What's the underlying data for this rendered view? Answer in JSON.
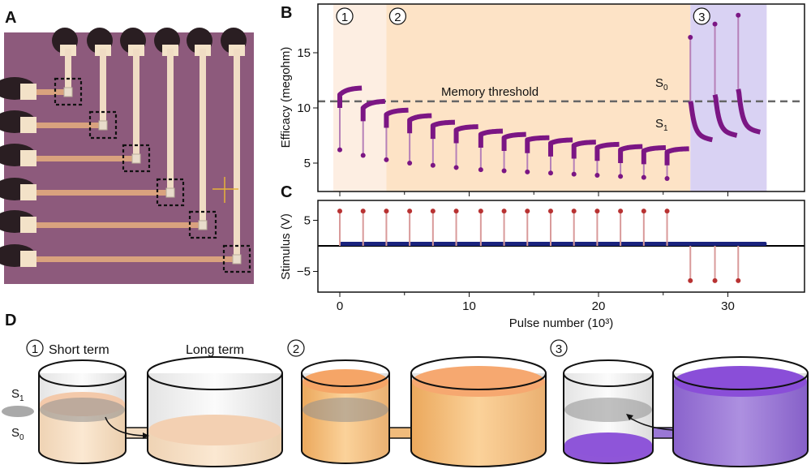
{
  "panels": {
    "a": "A",
    "b": "B",
    "c": "C",
    "d": "D"
  },
  "chart_data": [
    {
      "panel": "B",
      "type": "line",
      "xlabel": "Pulse number (10³)",
      "ylabel": "Efficacy (megohm)",
      "xlim": [
        -1.7,
        35.8
      ],
      "ylim": [
        2.4,
        19.4
      ],
      "xticks": [
        0,
        10,
        20,
        30
      ],
      "yticks": [
        5,
        10,
        15
      ],
      "threshold": {
        "value": 10.6,
        "label": "Memory threshold"
      },
      "state_labels": {
        "s0": "S",
        "s0_sub": "0",
        "s1": "S",
        "s1_sub": "1"
      },
      "regions": [
        {
          "label": "1",
          "x": [
            -0.5,
            3.6
          ],
          "color": "#fdeee2"
        },
        {
          "label": "2",
          "x": [
            3.6,
            27.1
          ],
          "color": "#fde3c6"
        },
        {
          "label": "3",
          "x": [
            27.1,
            33.0
          ],
          "color": "#d9d2f3"
        }
      ],
      "series_color": "#7b1684",
      "stem_color": "#b680b8",
      "potentiation_segments": [
        {
          "x": 0.0,
          "low": 6.2,
          "start": 11.2,
          "end": 11.8
        },
        {
          "x": 1.8,
          "low": 5.7,
          "start": 10.0,
          "end": 10.6
        },
        {
          "x": 3.6,
          "low": 5.3,
          "start": 9.4,
          "end": 9.8
        },
        {
          "x": 5.4,
          "low": 5.0,
          "start": 8.9,
          "end": 9.3
        },
        {
          "x": 7.2,
          "low": 4.8,
          "start": 8.4,
          "end": 8.7
        },
        {
          "x": 9.0,
          "low": 4.6,
          "start": 8.0,
          "end": 8.3
        },
        {
          "x": 10.9,
          "low": 4.4,
          "start": 7.6,
          "end": 7.9
        },
        {
          "x": 12.7,
          "low": 4.3,
          "start": 7.3,
          "end": 7.6
        },
        {
          "x": 14.5,
          "low": 4.2,
          "start": 7.1,
          "end": 7.3
        },
        {
          "x": 16.3,
          "low": 4.1,
          "start": 6.8,
          "end": 7.1
        },
        {
          "x": 18.1,
          "low": 4.0,
          "start": 6.6,
          "end": 6.9
        },
        {
          "x": 19.9,
          "low": 3.9,
          "start": 6.4,
          "end": 6.7
        },
        {
          "x": 21.7,
          "low": 3.8,
          "start": 6.2,
          "end": 6.5
        },
        {
          "x": 23.5,
          "low": 3.7,
          "start": 6.1,
          "end": 6.4
        },
        {
          "x": 25.3,
          "low": 3.6,
          "start": 6.0,
          "end": 6.3
        }
      ],
      "depression_segments": [
        {
          "x": 27.1,
          "spike": 16.4,
          "start": 10.6,
          "end": 7.1
        },
        {
          "x": 29.0,
          "spike": 17.6,
          "start": 11.2,
          "end": 7.5
        },
        {
          "x": 30.8,
          "spike": 18.4,
          "start": 11.7,
          "end": 7.8
        }
      ],
      "segment_length": 1.7
    },
    {
      "panel": "C",
      "type": "scatter",
      "xlabel": "Pulse number (10³)",
      "ylabel": "Stimulus (V)",
      "xlim": [
        -1.7,
        35.8
      ],
      "ylim": [
        -9,
        8.9
      ],
      "yticks": [
        -5,
        5
      ],
      "ytick_labels": [
        "−5",
        "5"
      ],
      "pulse_color": "#b83232",
      "baseline_color": "#1a237e",
      "baseline_range": [
        0,
        33
      ],
      "positive_pulses": {
        "x": [
          0,
          1.8,
          3.6,
          5.4,
          7.2,
          9.0,
          10.9,
          12.7,
          14.5,
          16.3,
          18.1,
          19.9,
          21.7,
          23.5,
          25.3
        ],
        "v": 6.8
      },
      "negative_pulses": {
        "x": [
          27.1,
          29.0,
          30.8
        ],
        "v": -6.8
      }
    }
  ],
  "diagram": {
    "stage1": "1",
    "stage2": "2",
    "stage3": "3",
    "short_term": "Short term",
    "long_term": "Long term",
    "s1": "S",
    "s1_sub": "1",
    "s0": "S",
    "s0_sub": "0"
  }
}
